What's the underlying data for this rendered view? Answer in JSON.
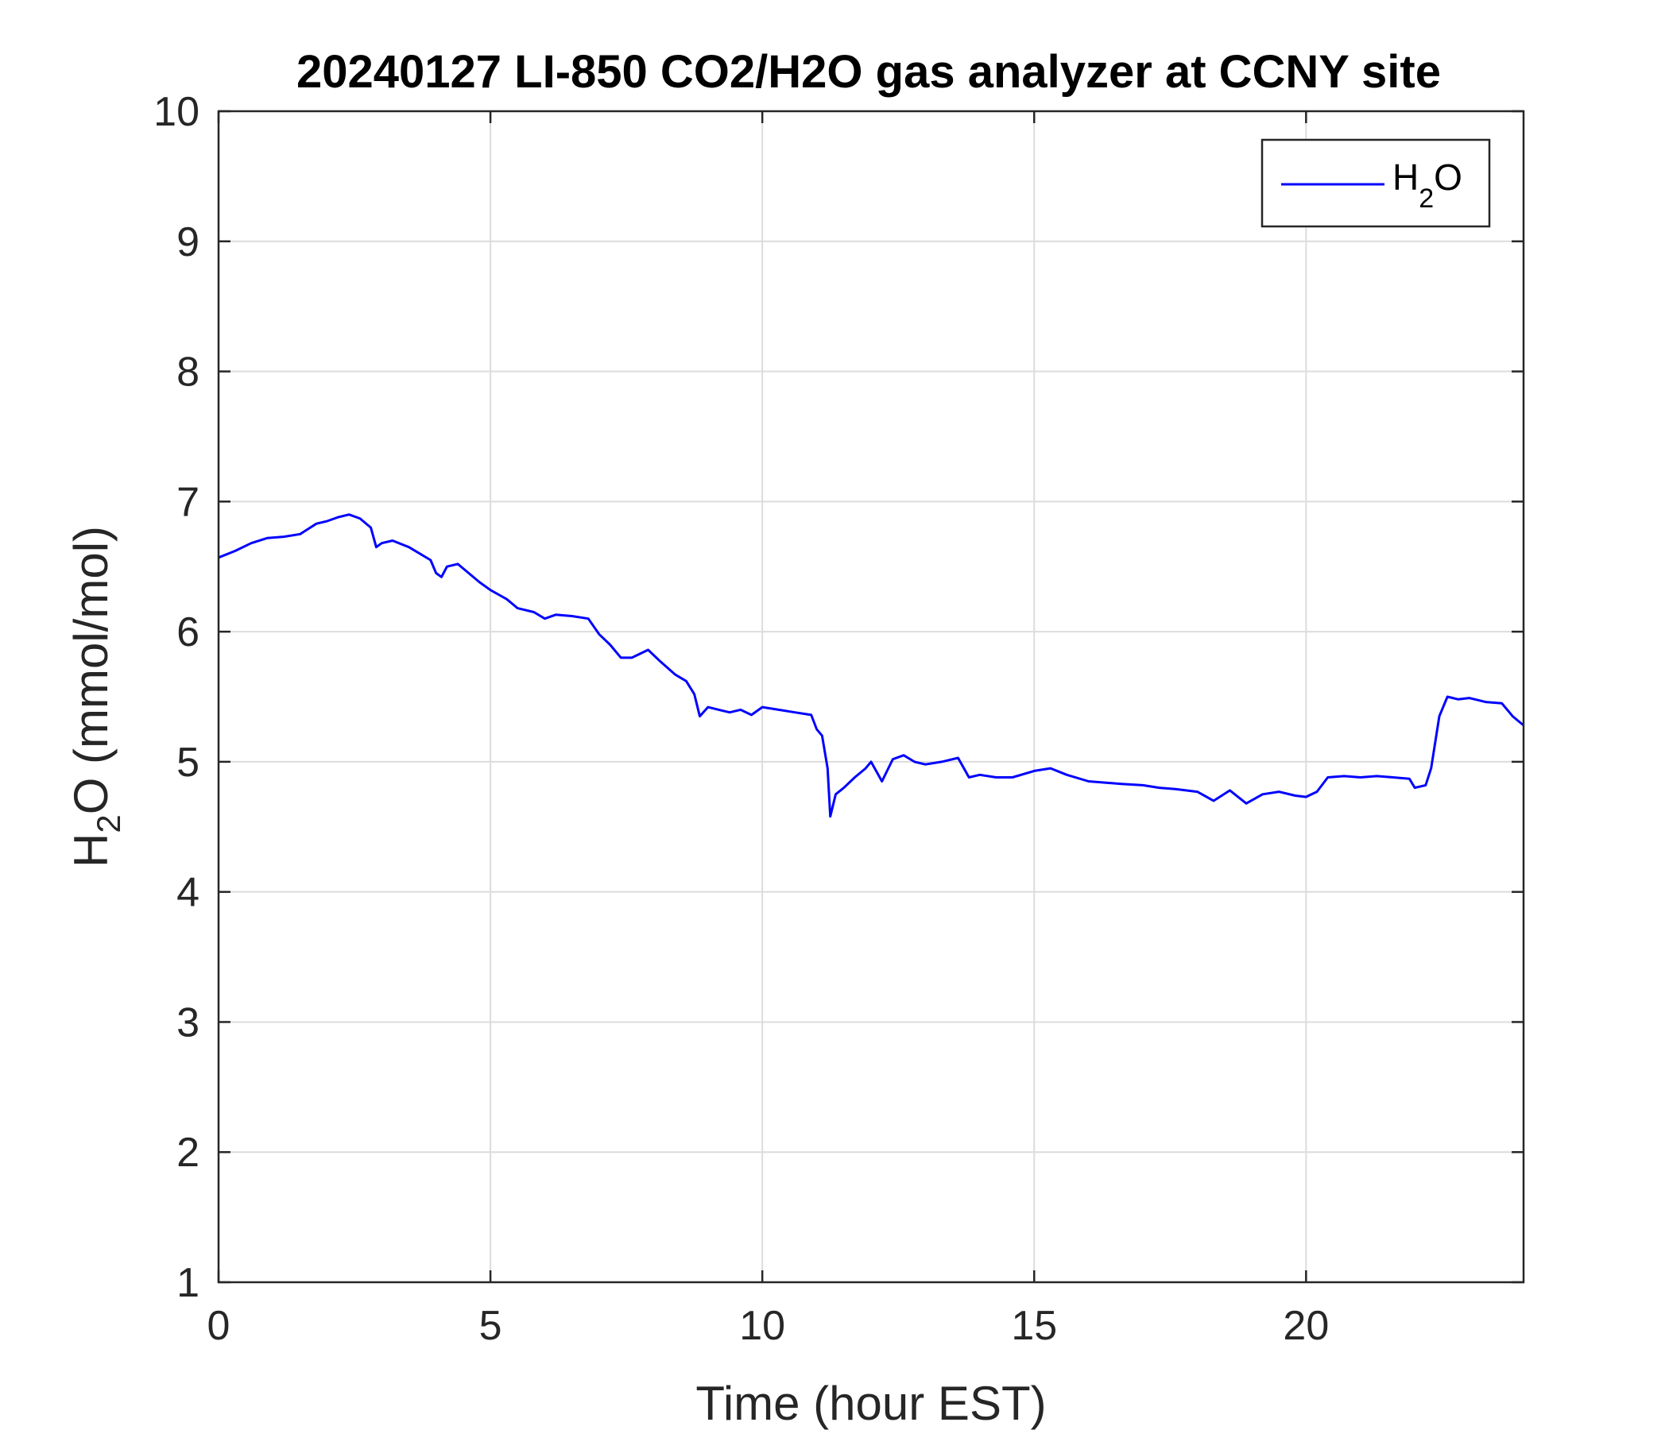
{
  "chart_data": {
    "type": "line",
    "title": "20240127 LI-850 CO2/H2O gas analyzer at CCNY site",
    "xlabel": "Time (hour EST)",
    "ylabel": {
      "main": "H",
      "sub": "2",
      "rest": "O (mmol/mol)"
    },
    "xlim": [
      0,
      24
    ],
    "ylim": [
      1,
      10
    ],
    "xticks": [
      0,
      5,
      10,
      15,
      20
    ],
    "yticks": [
      1,
      2,
      3,
      4,
      5,
      6,
      7,
      8,
      9,
      10
    ],
    "grid": true,
    "legend": {
      "position": "top-right",
      "entries": [
        {
          "main": "H",
          "sub": "2",
          "rest": "O"
        }
      ]
    },
    "series": [
      {
        "name": "H2O",
        "color": "#0000ff",
        "x": [
          0.0,
          0.3,
          0.6,
          0.9,
          1.2,
          1.5,
          1.8,
          2.0,
          2.2,
          2.4,
          2.6,
          2.8,
          2.9,
          3.0,
          3.2,
          3.5,
          3.7,
          3.9,
          4.0,
          4.1,
          4.2,
          4.4,
          4.6,
          4.8,
          5.0,
          5.3,
          5.5,
          5.8,
          6.0,
          6.2,
          6.5,
          6.8,
          7.0,
          7.2,
          7.4,
          7.6,
          7.9,
          8.1,
          8.4,
          8.6,
          8.75,
          8.85,
          9.0,
          9.2,
          9.4,
          9.6,
          9.8,
          10.0,
          10.3,
          10.6,
          10.9,
          11.0,
          11.1,
          11.2,
          11.25,
          11.35,
          11.5,
          11.7,
          11.9,
          12.0,
          12.2,
          12.4,
          12.6,
          12.8,
          13.0,
          13.3,
          13.6,
          13.8,
          14.0,
          14.3,
          14.6,
          15.0,
          15.3,
          15.6,
          16.0,
          16.3,
          16.6,
          17.0,
          17.3,
          17.6,
          18.0,
          18.3,
          18.6,
          18.9,
          19.2,
          19.5,
          19.8,
          20.0,
          20.2,
          20.4,
          20.7,
          21.0,
          21.3,
          21.6,
          21.9,
          22.0,
          22.2,
          22.3,
          22.45,
          22.6,
          22.8,
          23.0,
          23.3,
          23.6,
          23.8,
          24.0
        ],
        "y": [
          6.57,
          6.62,
          6.68,
          6.72,
          6.73,
          6.75,
          6.83,
          6.85,
          6.88,
          6.9,
          6.87,
          6.8,
          6.65,
          6.68,
          6.7,
          6.65,
          6.6,
          6.55,
          6.45,
          6.42,
          6.5,
          6.52,
          6.45,
          6.38,
          6.32,
          6.25,
          6.18,
          6.15,
          6.1,
          6.13,
          6.12,
          6.1,
          5.98,
          5.9,
          5.8,
          5.8,
          5.86,
          5.78,
          5.67,
          5.62,
          5.52,
          5.35,
          5.42,
          5.4,
          5.38,
          5.4,
          5.36,
          5.42,
          5.4,
          5.38,
          5.36,
          5.25,
          5.2,
          4.95,
          4.58,
          4.75,
          4.8,
          4.88,
          4.95,
          5.0,
          4.85,
          5.02,
          5.05,
          5.0,
          4.98,
          5.0,
          5.03,
          4.88,
          4.9,
          4.88,
          4.88,
          4.93,
          4.95,
          4.9,
          4.85,
          4.84,
          4.83,
          4.82,
          4.8,
          4.79,
          4.77,
          4.7,
          4.78,
          4.68,
          4.75,
          4.77,
          4.74,
          4.73,
          4.77,
          4.88,
          4.89,
          4.88,
          4.89,
          4.88,
          4.87,
          4.8,
          4.82,
          4.95,
          5.35,
          5.5,
          5.48,
          5.49,
          5.46,
          5.45,
          5.35,
          5.28
        ]
      }
    ]
  }
}
